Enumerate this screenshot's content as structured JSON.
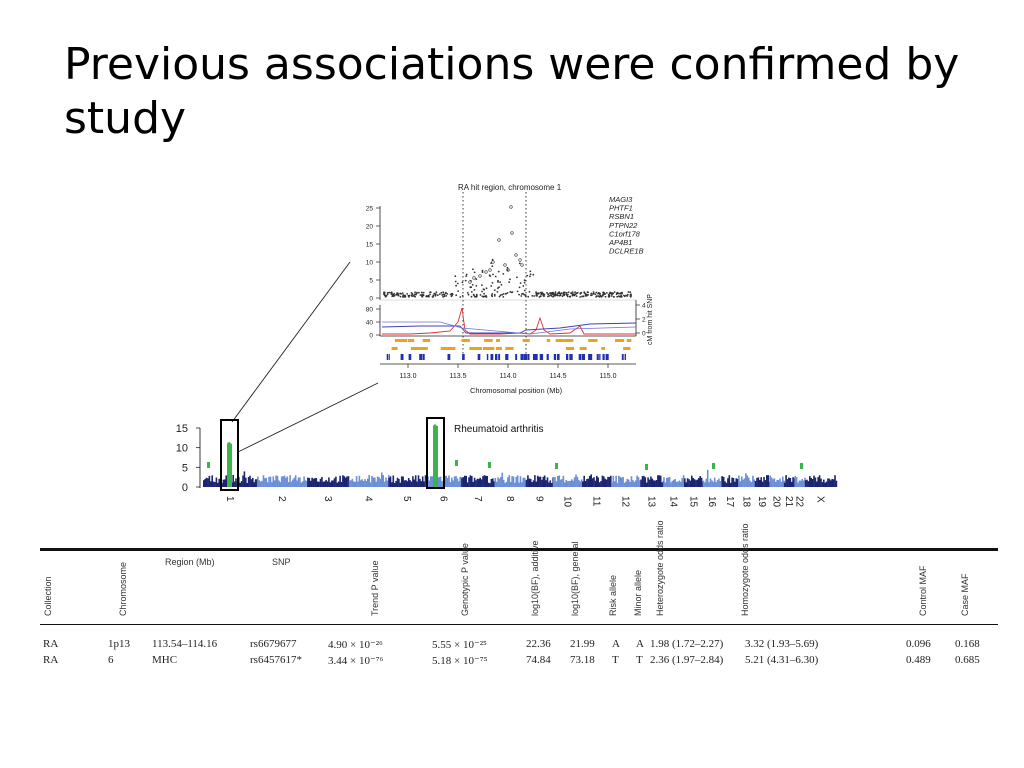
{
  "slide": {
    "title": "Previous associations were confirmed by study"
  },
  "inset_plot": {
    "title": "RA hit region, chromosome 1",
    "genes": [
      "MAGI3",
      "PHTF1",
      "RSBN1",
      "PTPN22",
      "C1orf178",
      "AP4B1",
      "DCLRE1B"
    ],
    "y_ticks_top": [
      "25",
      "20",
      "15",
      "10",
      "5",
      "0"
    ],
    "y_ticks_mid": [
      "80",
      "40",
      "0"
    ],
    "right_axis_label": "cM from hit SNP",
    "right_ticks": [
      "4",
      "2",
      "0"
    ],
    "x_ticks": [
      "113.0",
      "113.5",
      "114.0",
      "114.5",
      "115.0"
    ],
    "xlabel": "Chromosomal position (Mb)"
  },
  "chart_data": {
    "type": "scatter",
    "title": "Rheumatoid arthritis",
    "ylim": [
      0,
      15
    ],
    "y_ticks": [
      "15",
      "10",
      "5",
      "0"
    ],
    "chromosomes": [
      "1",
      "2",
      "3",
      "4",
      "5",
      "6",
      "7",
      "8",
      "9",
      "10",
      "11",
      "12",
      "13",
      "14",
      "15",
      "16",
      "17",
      "18",
      "19",
      "20",
      "21",
      "22",
      "X"
    ],
    "peaks": [
      {
        "chromosome": "1",
        "max_value": 11
      },
      {
        "chromosome": "6",
        "max_value": 15.5
      }
    ]
  },
  "table": {
    "headers": [
      "Collection",
      "Chromosome",
      "Region (Mb)",
      "SNP",
      "Trend P value",
      "Genotypic P value",
      "log10(BF), additive",
      "log10(BF), general",
      "Risk allele",
      "Minor allele",
      "Heterozygote odds ratio",
      "Homozygote odds ratio",
      "Control MAF",
      "Case MAF"
    ],
    "rows": [
      [
        "RA",
        "1p13",
        "113.54–114.16",
        "rs6679677",
        "4.90 × 10⁻²⁶",
        "5.55 × 10⁻²⁵",
        "22.36",
        "21.99",
        "A",
        "A",
        "1.98 (1.72–2.27)",
        "3.32 (1.93–5.69)",
        "0.096",
        "0.168"
      ],
      [
        "RA",
        "6",
        "MHC",
        "rs6457617*",
        "3.44 × 10⁻⁷⁶",
        "5.18 × 10⁻⁷⁵",
        "74.84",
        "73.18",
        "T",
        "T",
        "2.36 (1.97–2.84)",
        "5.21 (4.31–6.30)",
        "0.489",
        "0.685"
      ]
    ]
  }
}
